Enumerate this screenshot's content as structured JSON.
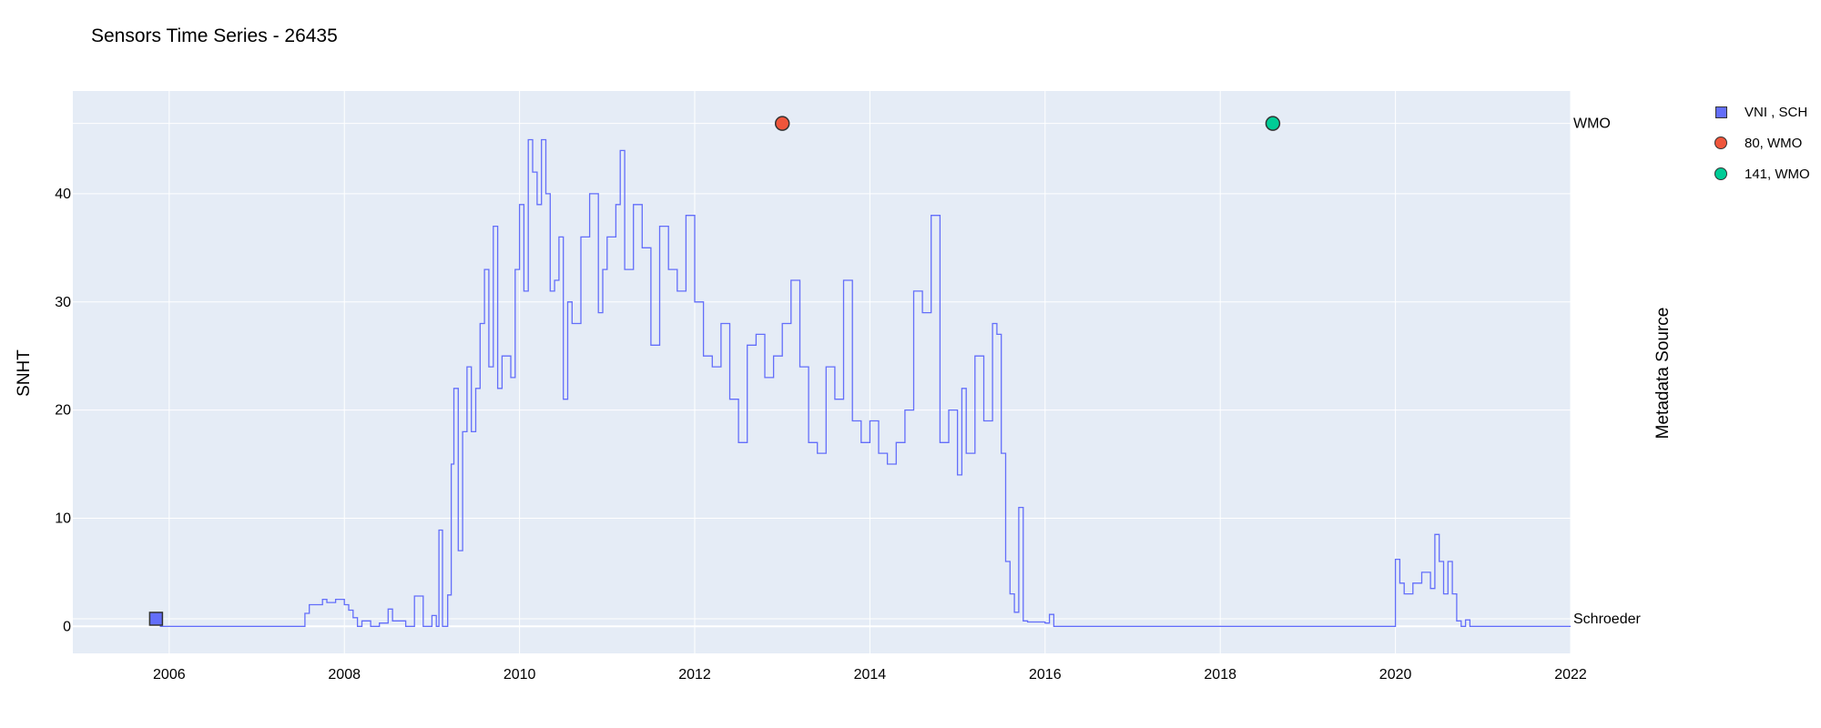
{
  "chart_data": {
    "type": "line",
    "title": "Sensors Time Series - 26435",
    "ylabel": "SNHT",
    "y2label": "Metadata Source",
    "xlim": [
      2004.9,
      2022.0
    ],
    "ylim": [
      -2.5,
      49.5
    ],
    "x_ticks": [
      "2006",
      "2008",
      "2010",
      "2012",
      "2014",
      "2016",
      "2018",
      "2020",
      "2022"
    ],
    "x_tick_values": [
      2006,
      2008,
      2010,
      2012,
      2014,
      2016,
      2018,
      2020,
      2022
    ],
    "y_ticks": [
      "0",
      "10",
      "20",
      "30",
      "40"
    ],
    "y_tick_values": [
      0,
      10,
      20,
      30,
      40
    ],
    "y2_categories": [
      "Schroeder",
      "WMO"
    ],
    "grid": true,
    "legend_position": "top-right",
    "series": [
      {
        "name": "SNHT",
        "color": "#636efa",
        "x": [
          2005.85,
          2005.9,
          2007.5,
          2007.55,
          2007.6,
          2007.75,
          2007.8,
          2007.9,
          2008.0,
          2008.05,
          2008.1,
          2008.15,
          2008.2,
          2008.3,
          2008.4,
          2008.5,
          2008.55,
          2008.7,
          2008.8,
          2008.9,
          2009.0,
          2009.05,
          2009.08,
          2009.12,
          2009.18,
          2009.22,
          2009.25,
          2009.3,
          2009.35,
          2009.4,
          2009.45,
          2009.5,
          2009.55,
          2009.6,
          2009.65,
          2009.7,
          2009.75,
          2009.8,
          2009.9,
          2009.95,
          2010.0,
          2010.05,
          2010.1,
          2010.15,
          2010.2,
          2010.25,
          2010.3,
          2010.35,
          2010.4,
          2010.45,
          2010.5,
          2010.55,
          2010.6,
          2010.7,
          2010.8,
          2010.9,
          2010.95,
          2011.0,
          2011.1,
          2011.15,
          2011.2,
          2011.3,
          2011.4,
          2011.5,
          2011.6,
          2011.7,
          2011.8,
          2011.9,
          2012.0,
          2012.1,
          2012.2,
          2012.3,
          2012.4,
          2012.5,
          2012.6,
          2012.7,
          2012.8,
          2012.9,
          2013.0,
          2013.1,
          2013.2,
          2013.3,
          2013.4,
          2013.5,
          2013.6,
          2013.7,
          2013.8,
          2013.9,
          2014.0,
          2014.1,
          2014.2,
          2014.3,
          2014.4,
          2014.5,
          2014.6,
          2014.7,
          2014.8,
          2014.9,
          2015.0,
          2015.05,
          2015.1,
          2015.2,
          2015.3,
          2015.4,
          2015.45,
          2015.5,
          2015.55,
          2015.6,
          2015.65,
          2015.7,
          2015.75,
          2015.8,
          2015.9,
          2016.0,
          2016.05,
          2016.1,
          2019.95,
          2020.0,
          2020.05,
          2020.1,
          2020.2,
          2020.3,
          2020.4,
          2020.45,
          2020.5,
          2020.55,
          2020.6,
          2020.65,
          2020.7,
          2020.75,
          2020.8,
          2020.85,
          2020.9,
          2021.0,
          2022.0
        ],
        "y": [
          0.6,
          0,
          0,
          1.2,
          2.0,
          2.5,
          2.2,
          2.5,
          2.0,
          1.5,
          0.8,
          0,
          0.5,
          0,
          0.3,
          1.6,
          0.5,
          0,
          2.8,
          0,
          1.0,
          0,
          8.9,
          0,
          2.9,
          15,
          22,
          7,
          18,
          24,
          18,
          22,
          28,
          33,
          24,
          37,
          22,
          25,
          23,
          33,
          39,
          31,
          45,
          42,
          39,
          45,
          40,
          31,
          32,
          36,
          21,
          30,
          28,
          36,
          40,
          29,
          33,
          36,
          39,
          44,
          33,
          39,
          35,
          26,
          37,
          33,
          31,
          38,
          30,
          25,
          24,
          28,
          21,
          17,
          26,
          27,
          23,
          25,
          28,
          32,
          24,
          17,
          16,
          24,
          21,
          32,
          19,
          17,
          19,
          16,
          15,
          17,
          20,
          31,
          29,
          38,
          17,
          20,
          14,
          22,
          16,
          25,
          19,
          28,
          27,
          16,
          6,
          3,
          1.3,
          11,
          0.5,
          0.4,
          0.4,
          0.3,
          1.1,
          0,
          0,
          6.2,
          4,
          3,
          4,
          5,
          3.5,
          8.5,
          6,
          3,
          6,
          3,
          0.5,
          0,
          0.6,
          0,
          0,
          0,
          0
        ]
      }
    ],
    "markers": [
      {
        "name": "VNI , SCH",
        "x": 2005.85,
        "category": "Schroeder",
        "symbol": "square",
        "color": "#636efa"
      },
      {
        "name": "80, WMO",
        "x": 2013.0,
        "category": "WMO",
        "symbol": "circle",
        "color": "#ef553b"
      },
      {
        "name": "141, WMO",
        "x": 2018.6,
        "category": "WMO",
        "symbol": "circle",
        "color": "#00cc96"
      }
    ]
  }
}
